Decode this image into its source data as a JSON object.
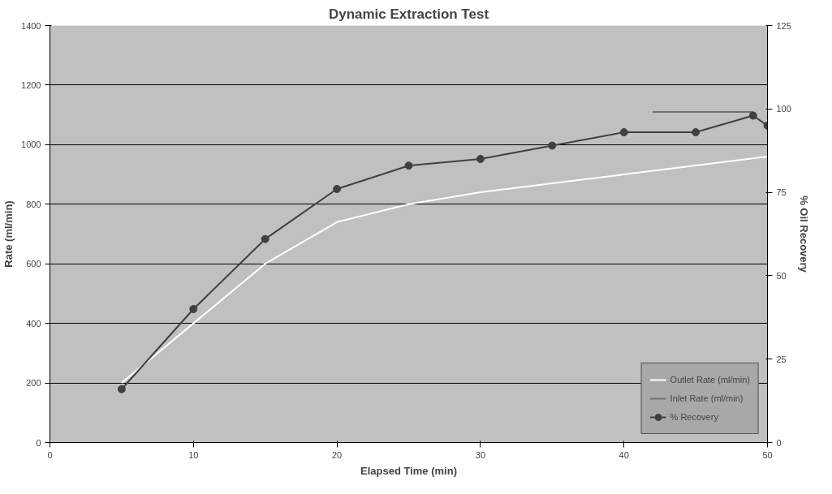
{
  "chart_data": {
    "type": "line",
    "title": "Dynamic Extraction Test",
    "xlabel": "Elapsed Time (min)",
    "ylabel": "Rate (ml/min)",
    "y2label": "% Oil Recovery",
    "xlim": [
      0,
      50
    ],
    "xticks": [
      0,
      10,
      20,
      30,
      40,
      50
    ],
    "ylim": [
      0,
      1400
    ],
    "yticks": [
      0,
      200,
      400,
      600,
      800,
      1000,
      1200,
      1400
    ],
    "y2lim": [
      0,
      125
    ],
    "y2ticks": [
      0,
      25,
      50,
      75,
      100,
      125
    ],
    "grid": "y",
    "legend": "bottom right",
    "line_style": "solid",
    "series": [
      {
        "name": "Outlet Rate (ml/min)",
        "color": "#ffffff",
        "marker": "none",
        "x": [
          5,
          10,
          15,
          20,
          25,
          30,
          35,
          40,
          45,
          50
        ],
        "values": [
          200,
          400,
          600,
          740,
          800,
          840,
          870,
          900,
          930,
          960
        ]
      },
      {
        "name": "Inlet Rate (ml/min)",
        "color": "#707070",
        "marker": "none",
        "x": [
          42,
          49
        ],
        "values": [
          1110,
          1110
        ]
      },
      {
        "name": "% Recovery",
        "color": "#404040",
        "marker": "circle",
        "axis": "y2",
        "x": [
          5,
          10,
          15,
          20,
          25,
          30,
          35,
          40,
          45,
          49,
          50
        ],
        "values": [
          16,
          40,
          61,
          76,
          83,
          85,
          89,
          93,
          93,
          98,
          95
        ]
      }
    ]
  }
}
